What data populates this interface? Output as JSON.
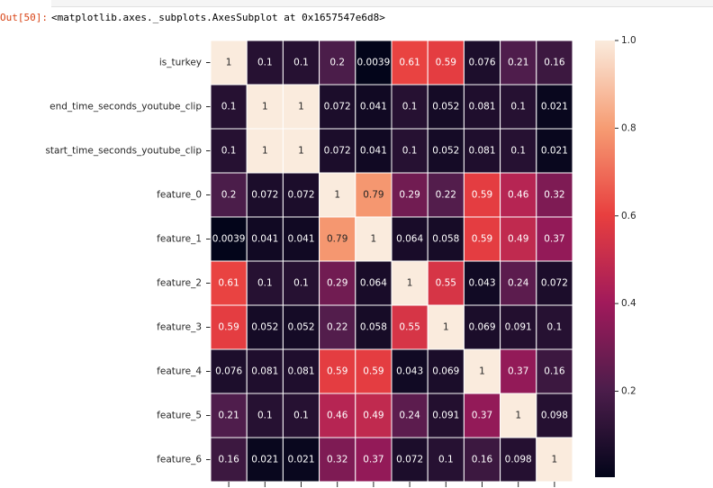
{
  "prompt": "Out[50]:",
  "output_text": "<matplotlib.axes._subplots.AxesSubplot at 0x1657547e6d8>",
  "chart_data": {
    "type": "heatmap",
    "row_labels": [
      "is_turkey",
      "end_time_seconds_youtube_clip",
      "start_time_seconds_youtube_clip",
      "feature_0",
      "feature_1",
      "feature_2",
      "feature_3",
      "feature_4",
      "feature_5",
      "feature_6"
    ],
    "values": [
      [
        1,
        0.1,
        0.1,
        0.2,
        0.0039,
        0.61,
        0.59,
        0.076,
        0.21,
        0.16
      ],
      [
        0.1,
        1,
        1,
        0.072,
        0.041,
        0.1,
        0.052,
        0.081,
        0.1,
        0.021
      ],
      [
        0.1,
        1,
        1,
        0.072,
        0.041,
        0.1,
        0.052,
        0.081,
        0.1,
        0.021
      ],
      [
        0.2,
        0.072,
        0.072,
        1,
        0.79,
        0.29,
        0.22,
        0.59,
        0.46,
        0.32
      ],
      [
        0.0039,
        0.041,
        0.041,
        0.79,
        1,
        0.064,
        0.058,
        0.59,
        0.49,
        0.37
      ],
      [
        0.61,
        0.1,
        0.1,
        0.29,
        0.064,
        1,
        0.55,
        0.043,
        0.24,
        0.072
      ],
      [
        0.59,
        0.052,
        0.052,
        0.22,
        0.058,
        0.55,
        1,
        0.069,
        0.091,
        0.1
      ],
      [
        0.076,
        0.081,
        0.081,
        0.59,
        0.59,
        0.043,
        0.069,
        1,
        0.37,
        0.16
      ],
      [
        0.21,
        0.1,
        0.1,
        0.46,
        0.49,
        0.24,
        0.091,
        0.37,
        1,
        0.098
      ],
      [
        0.16,
        0.021,
        0.021,
        0.32,
        0.37,
        0.072,
        0.1,
        0.16,
        0.098,
        1
      ]
    ],
    "colorbar_lim": [
      0.0039,
      1
    ],
    "colorbar_ticks": [
      0.2,
      0.4,
      0.6,
      0.8,
      {
        "value": 1,
        "label": "1.0"
      }
    ],
    "colormap": [
      "#03051a",
      "#4c1d4b",
      "#a11a5b",
      "#e83f3f",
      "#f69c73",
      "#faebdd"
    ],
    "linecolor": "#ffffff"
  }
}
